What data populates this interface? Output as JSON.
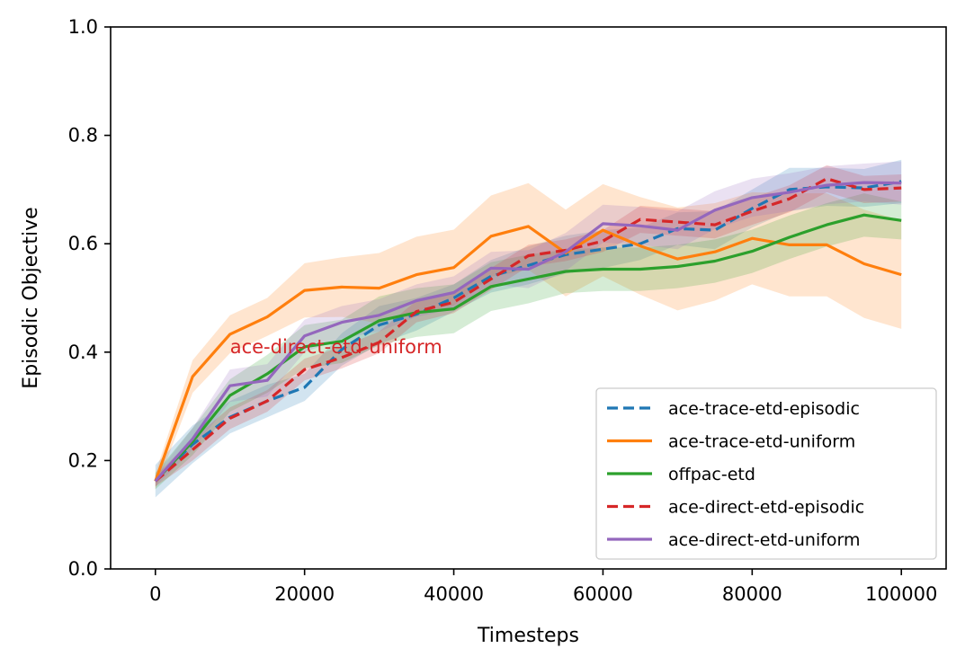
{
  "chart_data": {
    "type": "line",
    "xlabel": "Timesteps",
    "ylabel": "Episodic Objective",
    "xlim": [
      -6000,
      106000
    ],
    "ylim": [
      0.0,
      1.0
    ],
    "xticks": [
      0,
      20000,
      40000,
      60000,
      80000,
      100000
    ],
    "xtick_labels": [
      "0",
      "20000",
      "40000",
      "60000",
      "80000",
      "100000"
    ],
    "yticks": [
      0.0,
      0.2,
      0.4,
      0.6,
      0.8,
      1.0
    ],
    "ytick_labels": [
      "0.0",
      "0.2",
      "0.4",
      "0.6",
      "0.8",
      "1.0"
    ],
    "grid": false,
    "legend_position": "lower-right",
    "annotation": {
      "text": "ace-direct-etd-uniform",
      "x": 10000,
      "y": 0.41,
      "color": "#d62728"
    },
    "x": [
      0,
      5000,
      10000,
      15000,
      20000,
      25000,
      30000,
      35000,
      40000,
      45000,
      50000,
      55000,
      60000,
      65000,
      70000,
      75000,
      80000,
      85000,
      90000,
      95000,
      100000
    ],
    "series": [
      {
        "name": "ace-trace-etd-episodic",
        "color": "#1f77b4",
        "dashed": true,
        "values": [
          0.162,
          0.23,
          0.28,
          0.31,
          0.335,
          0.405,
          0.45,
          0.47,
          0.5,
          0.54,
          0.56,
          0.58,
          0.59,
          0.6,
          0.628,
          0.625,
          0.665,
          0.7,
          0.705,
          0.703,
          0.715
        ],
        "band": [
          0.03,
          0.035,
          0.03,
          0.03,
          0.025,
          0.03,
          0.035,
          0.03,
          0.025,
          0.03,
          0.035,
          0.035,
          0.035,
          0.03,
          0.03,
          0.035,
          0.035,
          0.04,
          0.035,
          0.035,
          0.04
        ]
      },
      {
        "name": "ace-trace-etd-uniform",
        "color": "#ff7f0e",
        "dashed": false,
        "values": [
          0.162,
          0.355,
          0.433,
          0.465,
          0.514,
          0.52,
          0.518,
          0.543,
          0.556,
          0.614,
          0.632,
          0.583,
          0.625,
          0.596,
          0.572,
          0.585,
          0.61,
          0.598,
          0.598,
          0.563,
          0.543
        ],
        "band": [
          0.015,
          0.03,
          0.035,
          0.035,
          0.05,
          0.055,
          0.065,
          0.07,
          0.07,
          0.075,
          0.08,
          0.08,
          0.085,
          0.09,
          0.095,
          0.09,
          0.085,
          0.095,
          0.095,
          0.1,
          0.1
        ]
      },
      {
        "name": "offpac-etd",
        "color": "#2ca02c",
        "dashed": false,
        "values": [
          0.162,
          0.235,
          0.32,
          0.36,
          0.41,
          0.42,
          0.458,
          0.473,
          0.48,
          0.521,
          0.535,
          0.549,
          0.553,
          0.553,
          0.558,
          0.568,
          0.586,
          0.612,
          0.635,
          0.653,
          0.643
        ],
        "band": [
          0.015,
          0.025,
          0.03,
          0.035,
          0.04,
          0.04,
          0.045,
          0.045,
          0.045,
          0.045,
          0.045,
          0.04,
          0.04,
          0.04,
          0.04,
          0.04,
          0.04,
          0.04,
          0.04,
          0.04,
          0.035
        ]
      },
      {
        "name": "ace-direct-etd-episodic",
        "color": "#d62728",
        "dashed": true,
        "values": [
          0.162,
          0.22,
          0.278,
          0.31,
          0.368,
          0.39,
          0.418,
          0.475,
          0.492,
          0.535,
          0.578,
          0.588,
          0.605,
          0.645,
          0.64,
          0.635,
          0.66,
          0.683,
          0.72,
          0.7,
          0.703
        ],
        "band": [
          0.01,
          0.02,
          0.02,
          0.02,
          0.02,
          0.02,
          0.02,
          0.02,
          0.02,
          0.02,
          0.02,
          0.02,
          0.02,
          0.025,
          0.025,
          0.025,
          0.025,
          0.025,
          0.025,
          0.025,
          0.025
        ]
      },
      {
        "name": "ace-direct-etd-uniform",
        "color": "#9467bd",
        "dashed": false,
        "values": [
          0.162,
          0.24,
          0.338,
          0.348,
          0.43,
          0.455,
          0.468,
          0.495,
          0.51,
          0.555,
          0.553,
          0.585,
          0.637,
          0.633,
          0.625,
          0.662,
          0.685,
          0.695,
          0.708,
          0.713,
          0.712
        ],
        "band": [
          0.01,
          0.02,
          0.03,
          0.03,
          0.03,
          0.03,
          0.03,
          0.03,
          0.03,
          0.03,
          0.035,
          0.035,
          0.035,
          0.035,
          0.035,
          0.035,
          0.035,
          0.035,
          0.035,
          0.035,
          0.04
        ]
      }
    ]
  }
}
